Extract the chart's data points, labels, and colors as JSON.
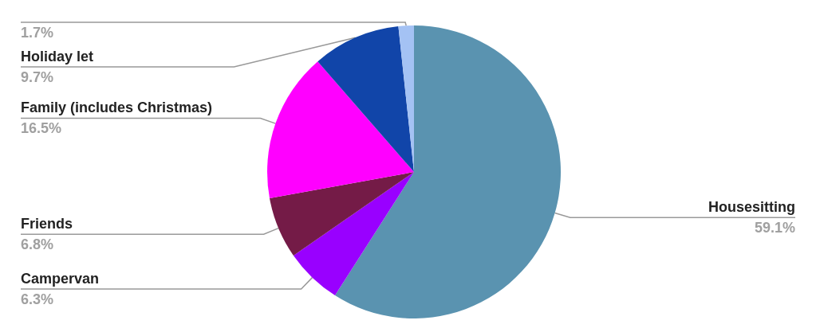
{
  "chart_data": {
    "type": "pie",
    "categories": [
      "Housesitting",
      "Campervan",
      "Friends",
      "Family (includes Christmas)",
      "Holiday let",
      null
    ],
    "values": [
      59.1,
      6.3,
      6.8,
      16.5,
      9.7,
      1.7
    ],
    "colors": [
      "#5a93b0",
      "#9900ff",
      "#741b47",
      "#ff00ff",
      "#1145a9",
      "#a4c2f4"
    ],
    "value_labels": [
      "59.1%",
      "6.3%",
      "6.8%",
      "16.5%",
      "9.7%",
      "1.7%"
    ]
  }
}
